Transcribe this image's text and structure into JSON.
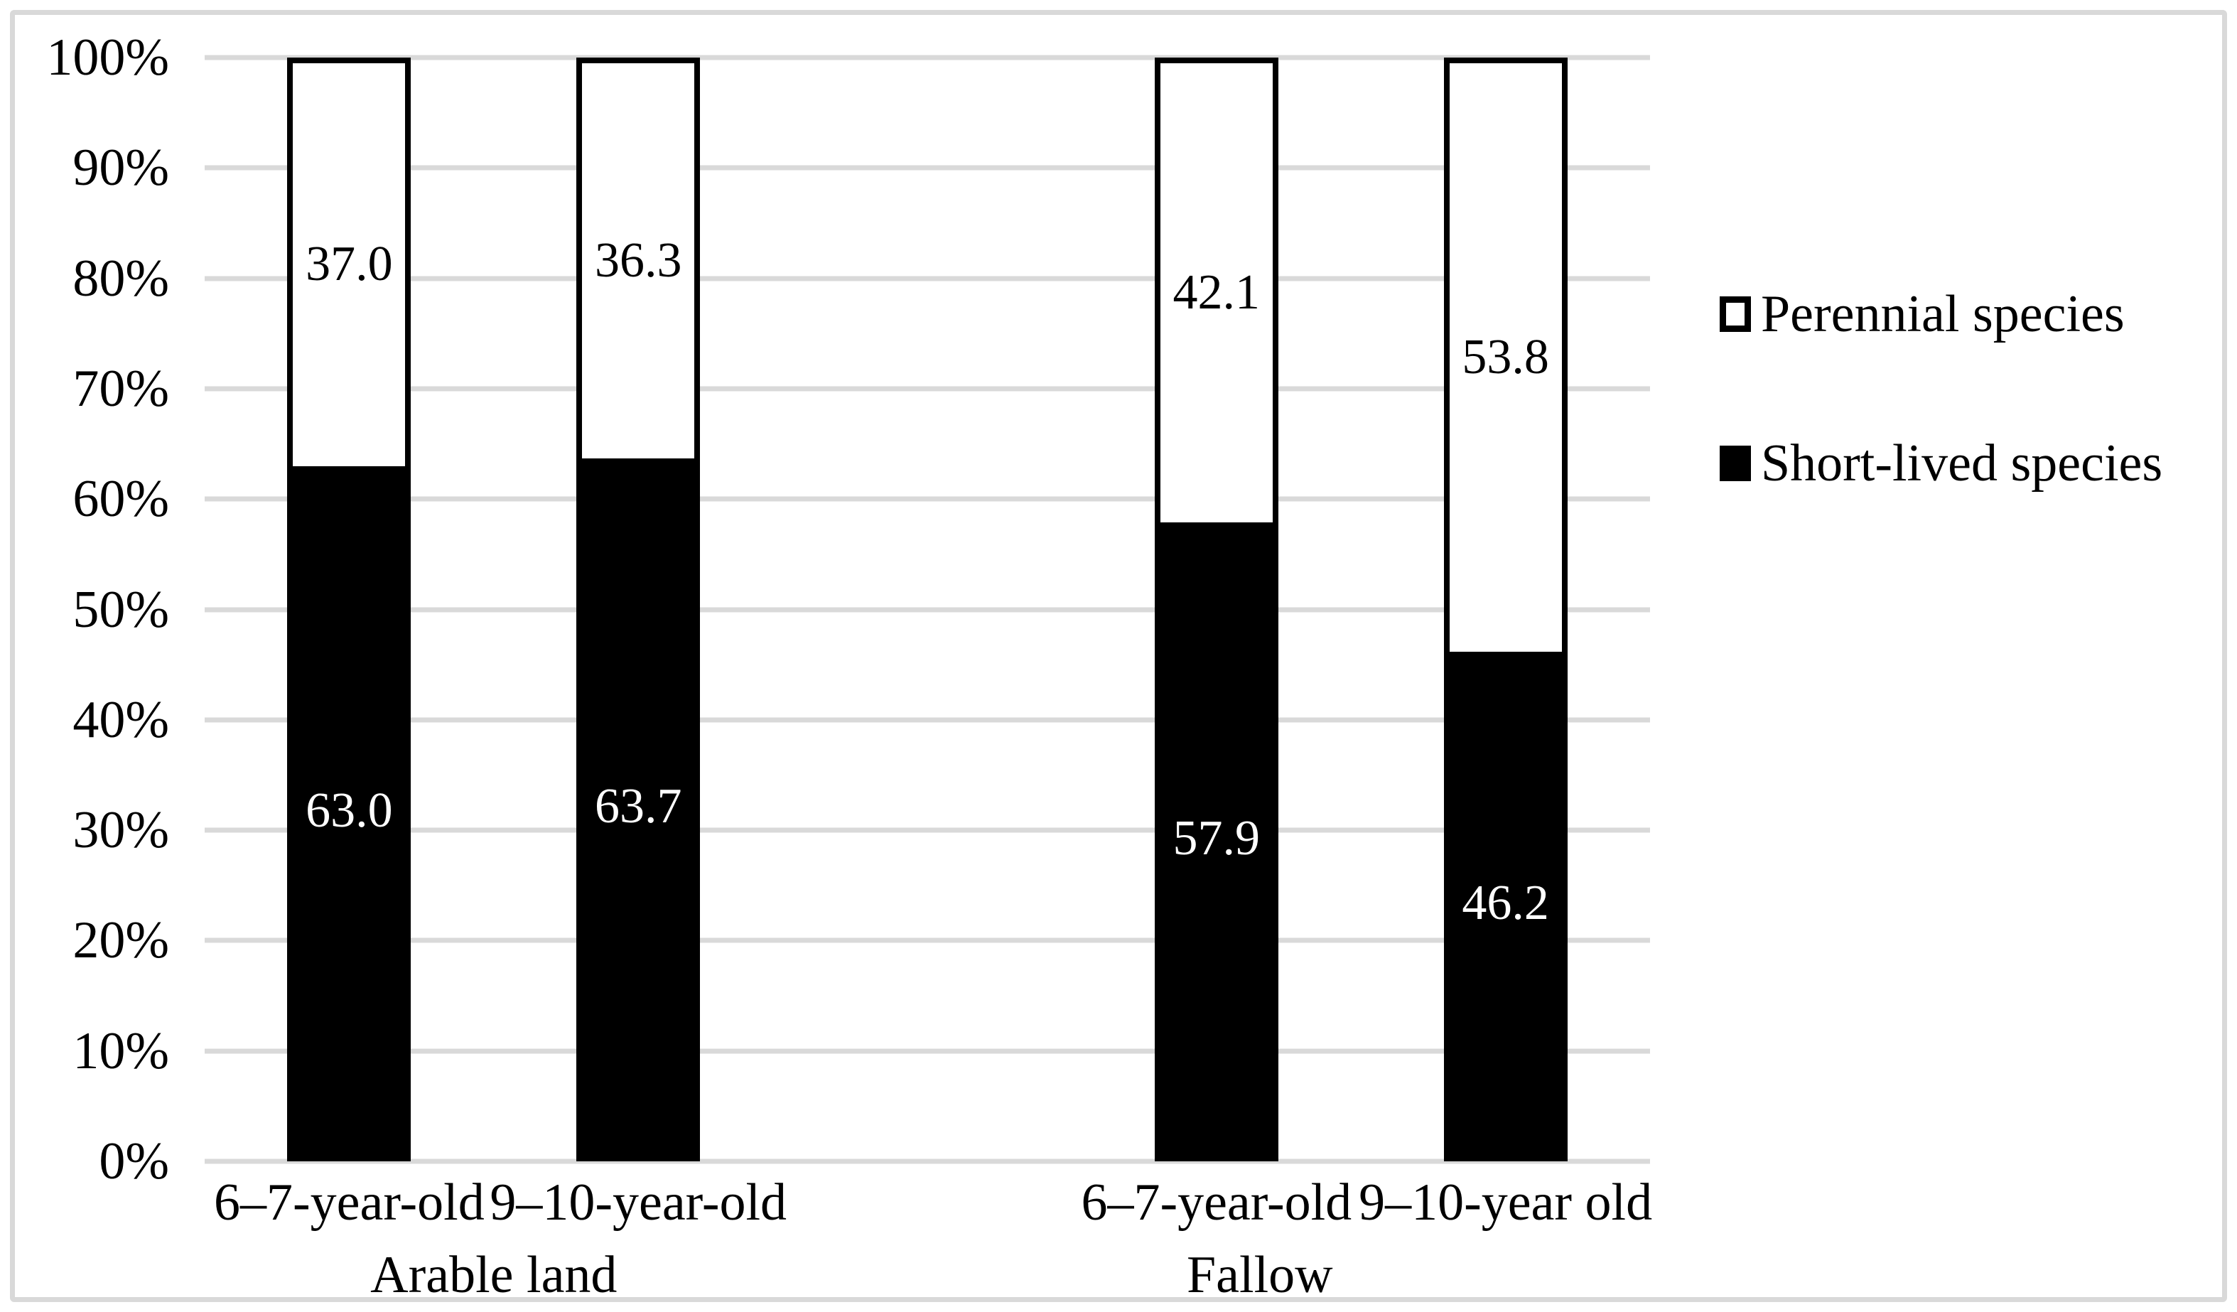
{
  "figure": {
    "background": "#ffffff",
    "frame_color": "#d9d9d9"
  },
  "chart_data": {
    "type": "bar",
    "subtype": "100-percent-stacked-column",
    "title": "",
    "xlabel": "",
    "ylabel": "",
    "y_axis": {
      "min": 0,
      "max": 100,
      "step": 10,
      "unit": "%",
      "grid": true,
      "gridline_color": "#d9d9d9",
      "ticks": [
        "100%",
        "90%",
        "80%",
        "70%",
        "60%",
        "50%",
        "40%",
        "30%",
        "20%",
        "10%",
        "0%"
      ]
    },
    "series_order_top_to_bottom": [
      "Perennial species",
      "Short-lived species"
    ],
    "legend": {
      "position": "right",
      "items": [
        {
          "label": "Perennial species",
          "fill": "#ffffff",
          "border": "#000000"
        },
        {
          "label": "Short-lived species",
          "fill": "#000000",
          "border": "#000000"
        }
      ]
    },
    "categories": [
      {
        "group": "Arable land",
        "age_label": "6–7-year-old",
        "perennial": 37.0,
        "short_lived": 63.0,
        "perennial_label": "37.0",
        "short_lived_label": "63.0"
      },
      {
        "group": "Arable land",
        "age_label": "9–10-year-old",
        "perennial": 36.3,
        "short_lived": 63.7,
        "perennial_label": "36.3",
        "short_lived_label": "63.7"
      },
      {
        "group": "Fallow",
        "age_label": "6–7-year-old",
        "perennial": 42.1,
        "short_lived": 57.9,
        "perennial_label": "42.1",
        "short_lived_label": "57.9"
      },
      {
        "group": "Fallow",
        "age_label": "9–10-year old",
        "perennial": 53.8,
        "short_lived": 46.2,
        "perennial_label": "53.8",
        "short_lived_label": "46.2"
      }
    ],
    "group_labels": [
      "Arable land",
      "Fallow"
    ],
    "bar_colors": {
      "perennial": "#ffffff",
      "short_lived": "#000000"
    }
  }
}
